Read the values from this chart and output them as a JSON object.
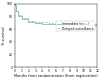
{
  "title": "",
  "xlabel": "Months from randomisation (from registration)",
  "ylabel": "% survival",
  "xlim": [
    0,
    12
  ],
  "ylim": [
    0,
    1.0
  ],
  "yticks": [
    0.0,
    0.2,
    0.4,
    0.6,
    0.8,
    1.0
  ],
  "ytick_labels": [
    "0",
    "20",
    "40",
    "60",
    "80",
    "100"
  ],
  "xticks": [
    0,
    1,
    2,
    3,
    4,
    5,
    6,
    7,
    8,
    9,
    10,
    11,
    12
  ],
  "line1_color": "#6AAAA6",
  "line2_color": "#8BBF9A",
  "line1_label": "Immediate (n=...)",
  "line2_label": "Delayed surveillance",
  "legend_fontsize": 2.2,
  "axis_fontsize": 2.5,
  "tick_fontsize": 2.2,
  "line_width": 0.5,
  "step1_x": [
    0,
    0.05,
    0.2,
    0.5,
    1,
    2,
    3,
    4,
    5,
    6,
    7,
    8,
    9,
    10,
    11,
    12
  ],
  "step1_y": [
    1.0,
    0.97,
    0.88,
    0.8,
    0.75,
    0.71,
    0.695,
    0.685,
    0.68,
    0.676,
    0.673,
    0.671,
    0.669,
    0.667,
    0.665,
    0.664
  ],
  "step2_x": [
    0,
    0.05,
    0.2,
    0.5,
    1,
    2,
    3,
    4,
    5,
    6,
    7,
    8,
    9,
    10,
    11,
    12
  ],
  "step2_y": [
    1.0,
    0.975,
    0.89,
    0.82,
    0.77,
    0.73,
    0.715,
    0.705,
    0.7,
    0.696,
    0.693,
    0.691,
    0.689,
    0.687,
    0.685,
    0.684
  ]
}
